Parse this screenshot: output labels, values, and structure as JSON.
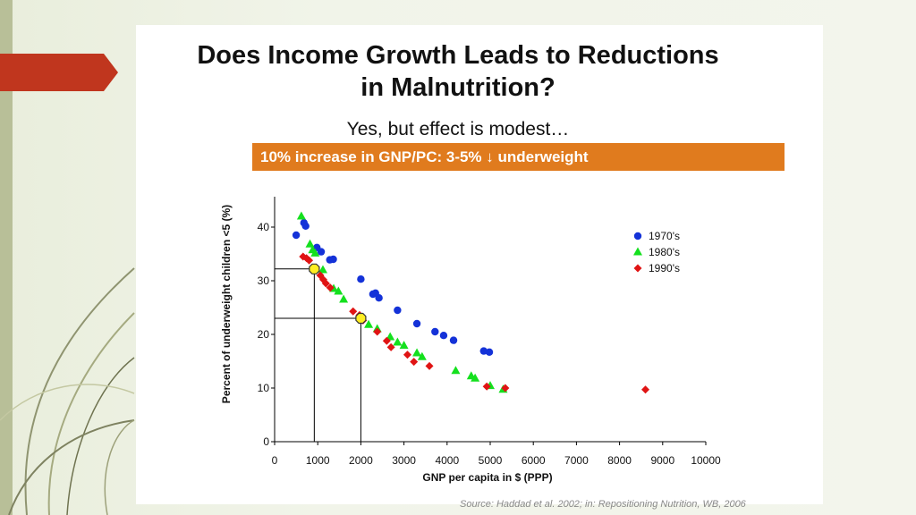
{
  "slide": {
    "title_line1": "Does Income Growth Leads to Reductions",
    "title_line2": "in Malnutrition?",
    "subtitle": "Yes, but effect is modest…",
    "banner": "10% increase in GNP/PC:  3-5% ↓ underweight",
    "source": "Source: Haddad et al. 2002; in: Repositioning Nutrition, WB, 2006"
  },
  "colors": {
    "banner": "#e07b1e",
    "accent_arrow": "#c0361e",
    "s1970": "#1432d8",
    "s1980": "#14e01e",
    "s1990": "#e01414",
    "highlight": "#ffee22"
  },
  "chart_data": {
    "type": "scatter",
    "title": "",
    "xlabel": "GNP per capita in $ (PPP)",
    "ylabel": "Percent of underweight  children <5 (%)",
    "xlim": [
      0,
      10000
    ],
    "ylim": [
      0,
      45
    ],
    "xticks": [
      0,
      1000,
      2000,
      3000,
      4000,
      5000,
      6000,
      7000,
      8000,
      9000,
      10000
    ],
    "yticks": [
      0,
      10,
      20,
      30,
      40
    ],
    "legend_position": "right",
    "series": [
      {
        "name": "1970's",
        "marker": "circle",
        "points": [
          [
            500,
            38.5
          ],
          [
            680,
            40.8
          ],
          [
            720,
            40.2
          ],
          [
            980,
            36.2
          ],
          [
            1080,
            35.4
          ],
          [
            1280,
            33.9
          ],
          [
            1360,
            34.0
          ],
          [
            2000,
            30.3
          ],
          [
            2280,
            27.5
          ],
          [
            2340,
            27.7
          ],
          [
            2420,
            26.8
          ],
          [
            2850,
            24.5
          ],
          [
            3300,
            22.0
          ],
          [
            3720,
            20.5
          ],
          [
            3920,
            19.8
          ],
          [
            4150,
            18.9
          ],
          [
            4850,
            16.9
          ],
          [
            4980,
            16.7
          ]
        ]
      },
      {
        "name": "1980's",
        "marker": "triangle",
        "points": [
          [
            620,
            42.0
          ],
          [
            820,
            36.8
          ],
          [
            880,
            35.7
          ],
          [
            940,
            35.1
          ],
          [
            1120,
            32.0
          ],
          [
            1370,
            28.5
          ],
          [
            1480,
            28.0
          ],
          [
            1600,
            26.5
          ],
          [
            2180,
            21.8
          ],
          [
            2380,
            21.0
          ],
          [
            2680,
            19.5
          ],
          [
            2850,
            18.5
          ],
          [
            3000,
            17.9
          ],
          [
            3300,
            16.5
          ],
          [
            3420,
            15.8
          ],
          [
            4200,
            13.2
          ],
          [
            4560,
            12.2
          ],
          [
            4650,
            11.8
          ],
          [
            5000,
            10.4
          ],
          [
            5300,
            9.7
          ]
        ]
      },
      {
        "name": "1990's",
        "marker": "diamond",
        "points": [
          [
            660,
            34.5
          ],
          [
            740,
            34.2
          ],
          [
            800,
            33.8
          ],
          [
            1060,
            31.0
          ],
          [
            1130,
            30.2
          ],
          [
            1190,
            29.5
          ],
          [
            1290,
            28.7
          ],
          [
            1820,
            24.3
          ],
          [
            1970,
            23.6
          ],
          [
            2050,
            22.6
          ],
          [
            2380,
            20.5
          ],
          [
            2600,
            18.8
          ],
          [
            2700,
            17.6
          ],
          [
            3080,
            16.2
          ],
          [
            3230,
            14.9
          ],
          [
            3590,
            14.1
          ],
          [
            4920,
            10.3
          ],
          [
            5350,
            10.0
          ],
          [
            8600,
            9.7
          ]
        ]
      }
    ],
    "highlights": [
      {
        "x": 920,
        "y": 32.2
      },
      {
        "x": 2000,
        "y": 23.0
      }
    ]
  }
}
